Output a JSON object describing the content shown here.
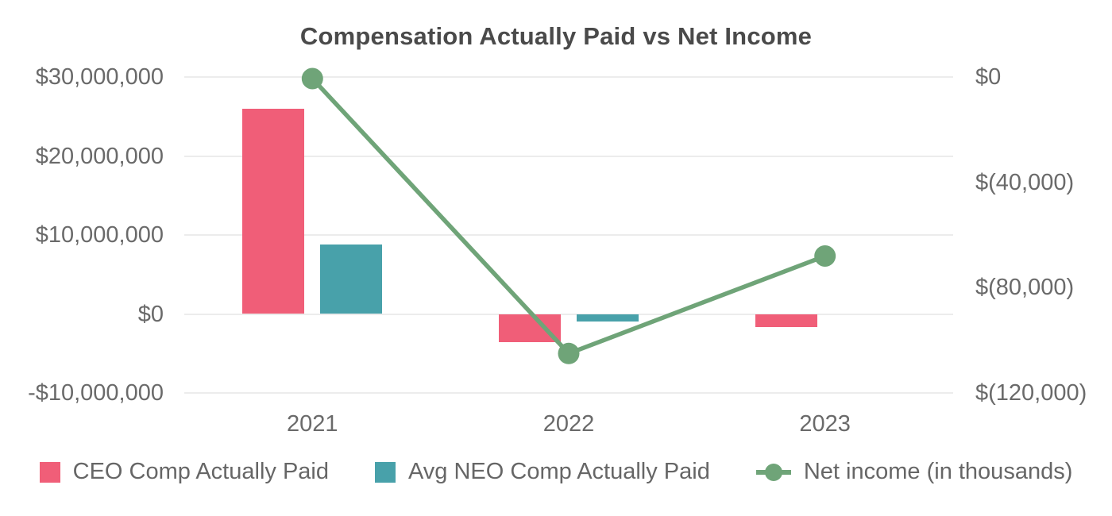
{
  "title": "Compensation Actually Paid vs Net Income",
  "colors": {
    "ceo_bar": "#F05E78",
    "neo_bar": "#48A1AA",
    "net_income_line": "#6FA478",
    "grid_line": "#ECECEC",
    "axis_label_text": "#6A6A6A",
    "title_text": "#4A4A4A",
    "legend_text": "#666666",
    "background": "#FFFFFF"
  },
  "chart_data": {
    "type": "combo-bar-line",
    "title": "Compensation Actually Paid vs Net Income",
    "categories": [
      "2021",
      "2022",
      "2023"
    ],
    "series": [
      {
        "name": "CEO Comp Actually Paid",
        "kind": "bar",
        "axis": "left",
        "color": "#F05E78",
        "values": [
          26000000,
          -3600000,
          -1700000
        ]
      },
      {
        "name": "Avg NEO Comp Actually Paid",
        "kind": "bar",
        "axis": "left",
        "color": "#48A1AA",
        "values": [
          8800000,
          -1000000,
          0
        ]
      },
      {
        "name": "Net income (in thousands)",
        "kind": "line",
        "axis": "right",
        "color": "#6FA478",
        "values": [
          -600,
          -105000,
          -68000
        ]
      }
    ],
    "left_axis": {
      "min": -10000000,
      "max": 30000000,
      "ticks": [
        {
          "value": 30000000,
          "label": "$30,000,000"
        },
        {
          "value": 20000000,
          "label": "$20,000,000"
        },
        {
          "value": 10000000,
          "label": "$10,000,000"
        },
        {
          "value": 0,
          "label": "$0"
        },
        {
          "value": -10000000,
          "label": "-$10,000,000"
        }
      ]
    },
    "right_axis": {
      "min": -120000,
      "max": 0,
      "ticks": [
        {
          "value": 0,
          "label": "$0"
        },
        {
          "value": -40000,
          "label": "$(40,000)"
        },
        {
          "value": -80000,
          "label": "$(80,000)"
        },
        {
          "value": -120000,
          "label": "$(120,000)"
        }
      ]
    },
    "legend": [
      "CEO Comp Actually Paid",
      "Avg NEO Comp Actually Paid",
      "Net income (in thousands)"
    ],
    "legend_position": "bottom",
    "grid": true
  }
}
